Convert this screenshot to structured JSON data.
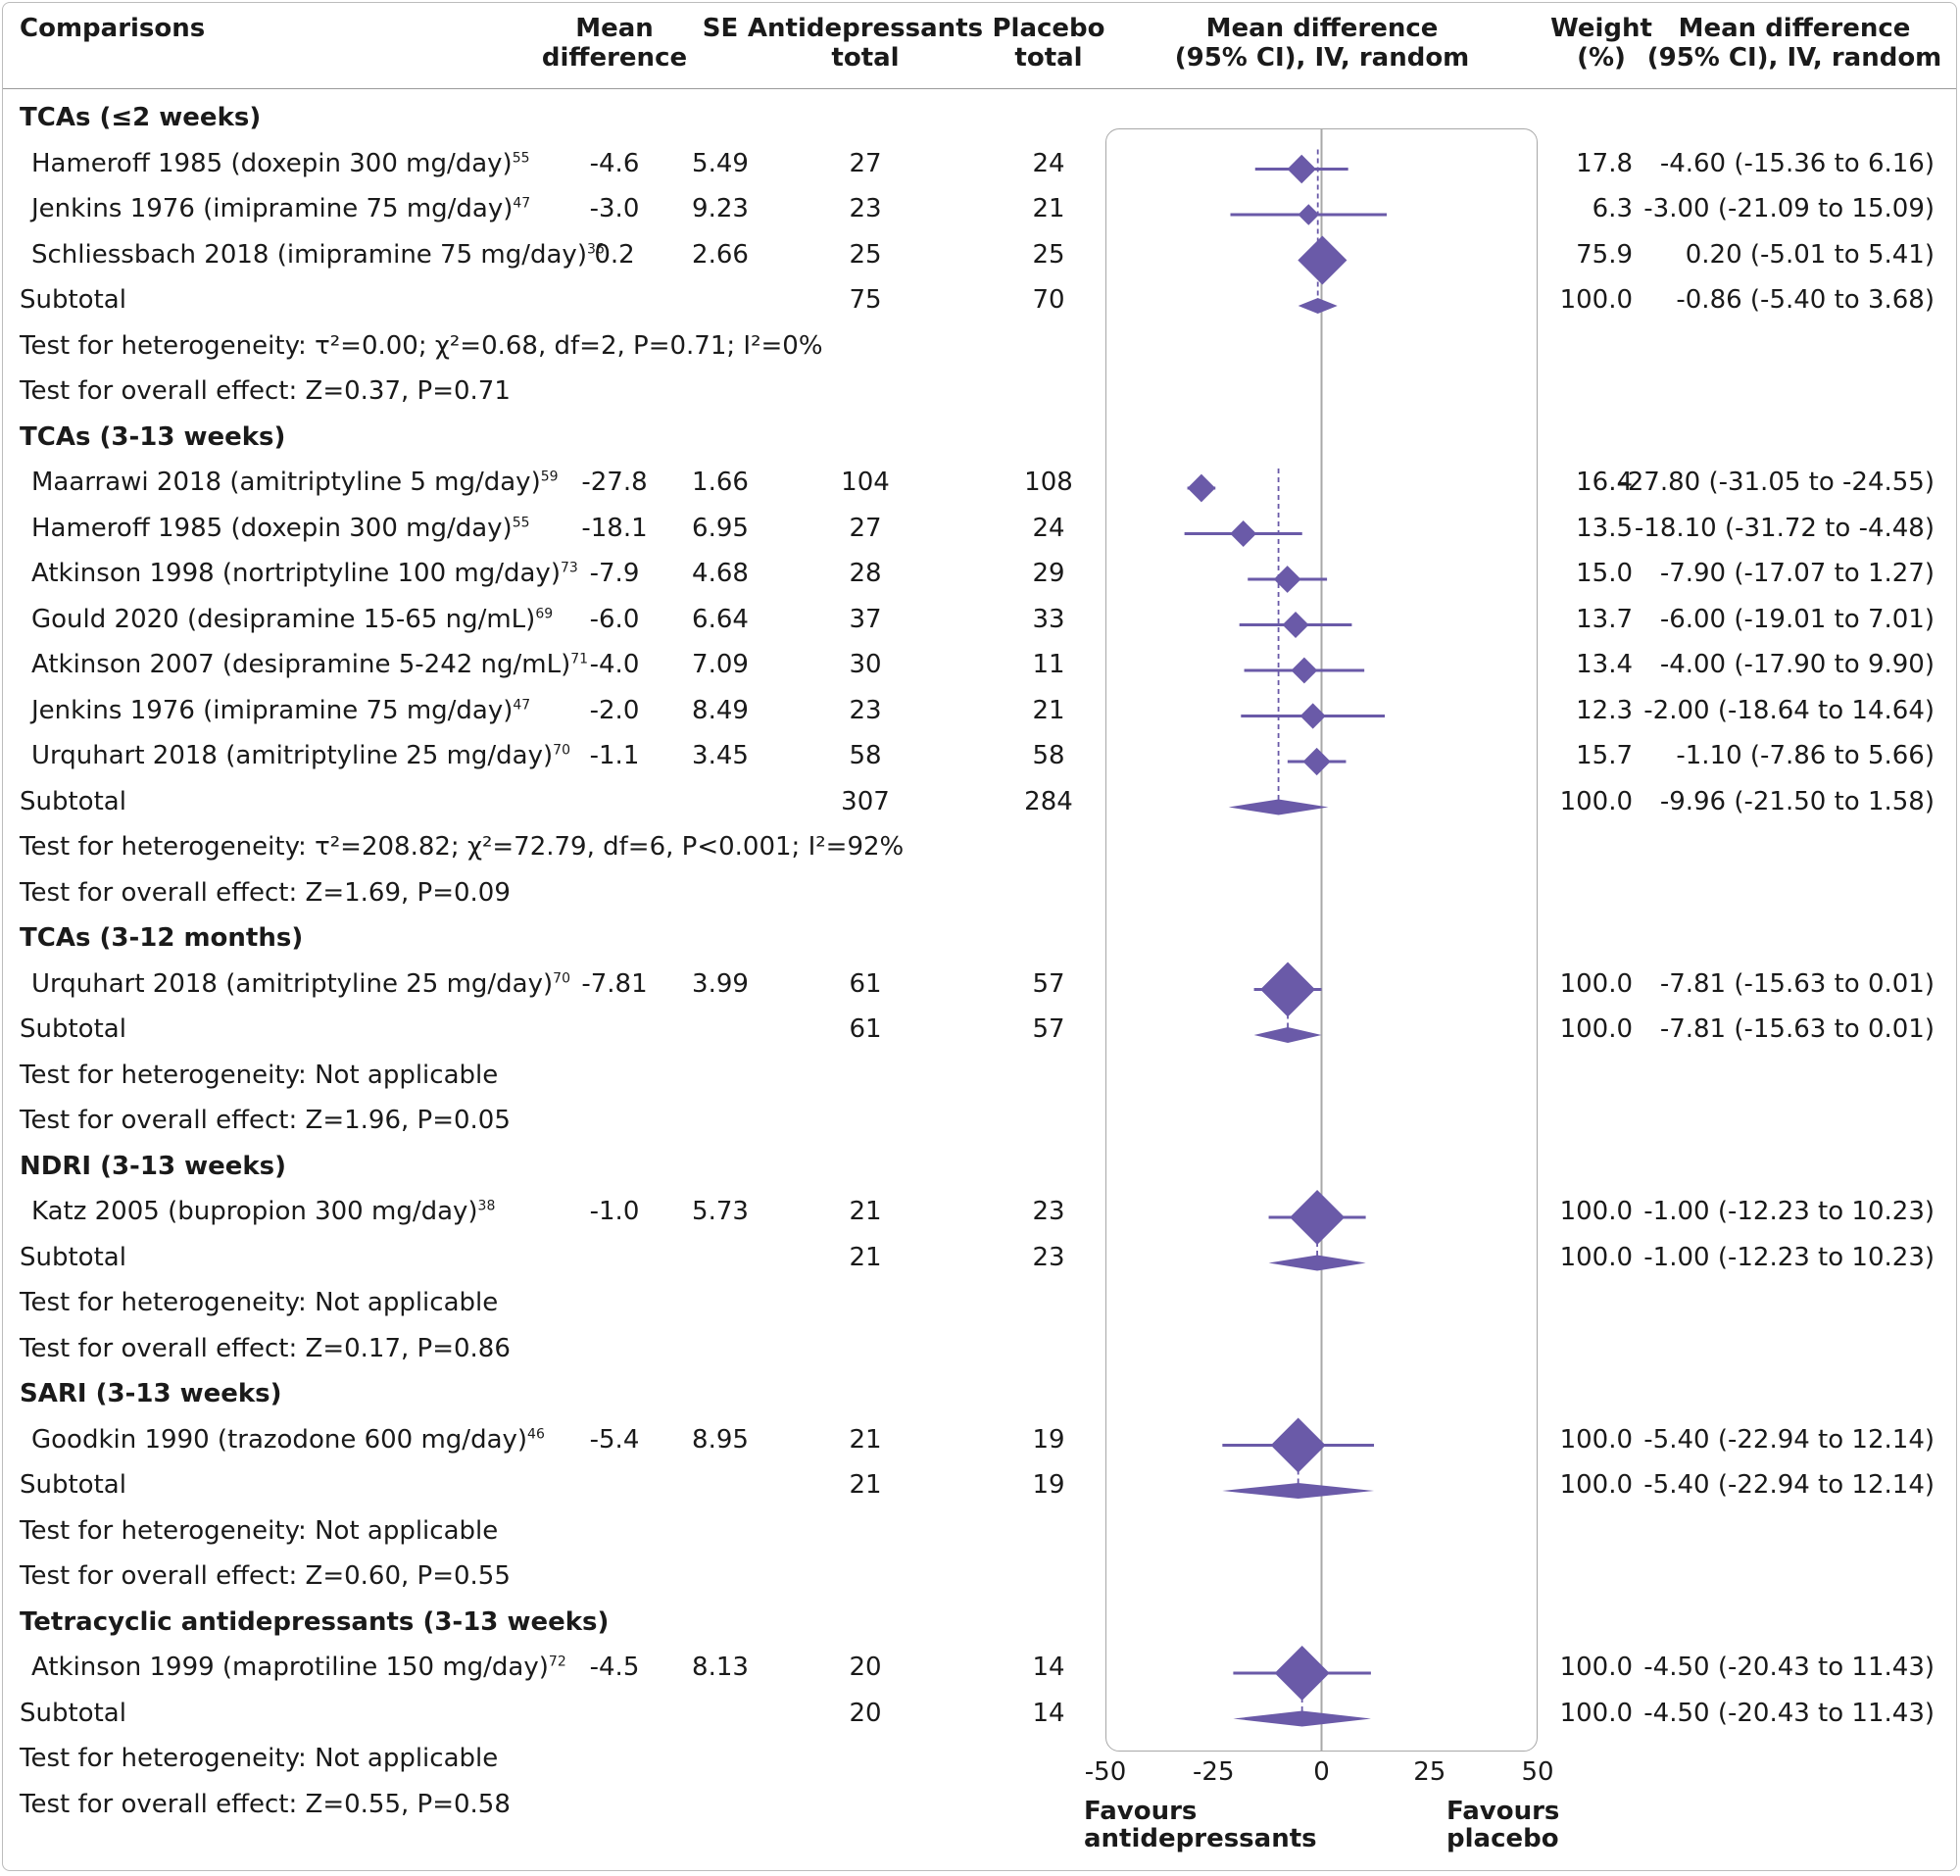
{
  "header": {
    "comparisons": "Comparisons",
    "mean_diff_1": "Mean",
    "mean_diff_2": "difference",
    "se": "SE",
    "antidep_1": "Antidepressants",
    "antidep_2": "total",
    "placebo_1": "Placebo",
    "placebo_2": "total",
    "plot_1": "Mean difference",
    "plot_2": "(95% CI), IV, random",
    "weight_1": "Weight",
    "weight_2": "(%)",
    "ci_1": "Mean difference",
    "ci_2": "(95% CI), IV, random"
  },
  "rows": [
    {
      "kind": "group",
      "label": "TCAs (≤2 weeks)"
    },
    {
      "kind": "study",
      "label": "Hameroff 1985 (doxepin 300 mg/day)",
      "ref": "55",
      "md": "-4.6",
      "se": "5.49",
      "n_ad": "27",
      "n_pl": "24",
      "weight": "17.8",
      "ci_text": "-4.60 (-15.36 to 6.16)"
    },
    {
      "kind": "study",
      "label": "Jenkins 1976 (imipramine 75 mg/day)",
      "ref": "47",
      "md": "-3.0",
      "se": "9.23",
      "n_ad": "23",
      "n_pl": "21",
      "weight": "6.3",
      "ci_text": "-3.00 (-21.09 to 15.09)"
    },
    {
      "kind": "study",
      "label": "Schliessbach 2018 (imipramine 75 mg/day)",
      "ref": "36",
      "md": "0.2",
      "se": "2.66",
      "n_ad": "25",
      "n_pl": "25",
      "weight": "75.9",
      "ci_text": "0.20 (-5.01 to 5.41)"
    },
    {
      "kind": "subtotal",
      "label": "Subtotal",
      "n_ad": "75",
      "n_pl": "70",
      "weight": "100.0",
      "ci_text": "-0.86 (-5.40 to 3.68)"
    },
    {
      "kind": "note",
      "label": "Test for heterogeneity: τ²=0.00; χ²=0.68, df=2, P=0.71; I²=0%"
    },
    {
      "kind": "note",
      "label": "Test for overall effect: Z=0.37, P=0.71"
    },
    {
      "kind": "group",
      "label": "TCAs (3-13 weeks)"
    },
    {
      "kind": "study",
      "label": "Maarrawi 2018 (amitriptyline 5 mg/day)",
      "ref": "59",
      "md": "-27.8",
      "se": "1.66",
      "n_ad": "104",
      "n_pl": "108",
      "weight": "16.4",
      "ci_text": "-27.80 (-31.05 to -24.55)"
    },
    {
      "kind": "study",
      "label": "Hameroff 1985 (doxepin 300 mg/day)",
      "ref": "55",
      "md": "-18.1",
      "se": "6.95",
      "n_ad": "27",
      "n_pl": "24",
      "weight": "13.5",
      "ci_text": "-18.10 (-31.72 to -4.48)"
    },
    {
      "kind": "study",
      "label": "Atkinson 1998 (nortriptyline 100 mg/day)",
      "ref": "73",
      "md": "-7.9",
      "se": "4.68",
      "n_ad": "28",
      "n_pl": "29",
      "weight": "15.0",
      "ci_text": "-7.90 (-17.07 to 1.27)"
    },
    {
      "kind": "study",
      "label": "Gould 2020 (desipramine 15-65 ng/mL)",
      "ref": "69",
      "md": "-6.0",
      "se": "6.64",
      "n_ad": "37",
      "n_pl": "33",
      "weight": "13.7",
      "ci_text": "-6.00 (-19.01 to 7.01)"
    },
    {
      "kind": "study",
      "label": "Atkinson 2007 (desipramine 5-242 ng/mL)",
      "ref": "71",
      "md": "-4.0",
      "se": "7.09",
      "n_ad": "30",
      "n_pl": "11",
      "weight": "13.4",
      "ci_text": "-4.00 (-17.90 to 9.90)"
    },
    {
      "kind": "study",
      "label": "Jenkins 1976 (imipramine 75 mg/day)",
      "ref": "47",
      "md": "-2.0",
      "se": "8.49",
      "n_ad": "23",
      "n_pl": "21",
      "weight": "12.3",
      "ci_text": "-2.00 (-18.64 to 14.64)"
    },
    {
      "kind": "study",
      "label": "Urquhart 2018 (amitriptyline 25 mg/day)",
      "ref": "70",
      "md": "-1.1",
      "se": "3.45",
      "n_ad": "58",
      "n_pl": "58",
      "weight": "15.7",
      "ci_text": "-1.10 (-7.86 to 5.66)"
    },
    {
      "kind": "subtotal",
      "label": "Subtotal",
      "n_ad": "307",
      "n_pl": "284",
      "weight": "100.0",
      "ci_text": "-9.96 (-21.50 to 1.58)"
    },
    {
      "kind": "note",
      "label": "Test for heterogeneity: τ²=208.82; χ²=72.79, df=6, P<0.001; I²=92%"
    },
    {
      "kind": "note",
      "label": "Test for overall effect: Z=1.69, P=0.09"
    },
    {
      "kind": "group",
      "label": "TCAs (3-12 months)"
    },
    {
      "kind": "study",
      "label": "Urquhart 2018 (amitriptyline 25 mg/day)",
      "ref": "70",
      "md": "-7.81",
      "se": "3.99",
      "n_ad": "61",
      "n_pl": "57",
      "weight": "100.0",
      "ci_text": "-7.81 (-15.63 to 0.01)"
    },
    {
      "kind": "subtotal",
      "label": "Subtotal",
      "n_ad": "61",
      "n_pl": "57",
      "weight": "100.0",
      "ci_text": "-7.81 (-15.63 to 0.01)"
    },
    {
      "kind": "note",
      "label": "Test for heterogeneity: Not applicable"
    },
    {
      "kind": "note",
      "label": "Test for overall effect: Z=1.96, P=0.05"
    },
    {
      "kind": "group",
      "label": "NDRI (3-13 weeks)"
    },
    {
      "kind": "study",
      "label": "Katz 2005 (bupropion 300 mg/day)",
      "ref": "38",
      "md": "-1.0",
      "se": "5.73",
      "n_ad": "21",
      "n_pl": "23",
      "weight": "100.0",
      "ci_text": "-1.00 (-12.23 to 10.23)"
    },
    {
      "kind": "subtotal",
      "label": "Subtotal",
      "n_ad": "21",
      "n_pl": "23",
      "weight": "100.0",
      "ci_text": "-1.00 (-12.23 to 10.23)"
    },
    {
      "kind": "note",
      "label": "Test for heterogeneity: Not applicable"
    },
    {
      "kind": "note",
      "label": "Test for overall effect: Z=0.17, P=0.86"
    },
    {
      "kind": "group",
      "label": "SARI (3-13 weeks)"
    },
    {
      "kind": "study",
      "label": "Goodkin 1990 (trazodone 600 mg/day)",
      "ref": "46",
      "md": "-5.4",
      "se": "8.95",
      "n_ad": "21",
      "n_pl": "19",
      "weight": "100.0",
      "ci_text": "-5.40 (-22.94 to 12.14)"
    },
    {
      "kind": "subtotal",
      "label": "Subtotal",
      "n_ad": "21",
      "n_pl": "19",
      "weight": "100.0",
      "ci_text": "-5.40 (-22.94 to 12.14)"
    },
    {
      "kind": "note",
      "label": "Test for heterogeneity: Not applicable"
    },
    {
      "kind": "note",
      "label": "Test for overall effect: Z=0.60, P=0.55"
    },
    {
      "kind": "group",
      "label": "Tetracyclic antidepressants (3-13 weeks)"
    },
    {
      "kind": "study",
      "label": "Atkinson 1999 (maprotiline 150 mg/day)",
      "ref": "72",
      "md": "-4.5",
      "se": "8.13",
      "n_ad": "20",
      "n_pl": "14",
      "weight": "100.0",
      "ci_text": "-4.50 (-20.43 to 11.43)"
    },
    {
      "kind": "subtotal",
      "label": "Subtotal",
      "n_ad": "20",
      "n_pl": "14",
      "weight": "100.0",
      "ci_text": "-4.50 (-20.43 to 11.43)"
    },
    {
      "kind": "note",
      "label": "Test for heterogeneity: Not applicable"
    },
    {
      "kind": "note",
      "label": "Test for overall effect: Z=0.55, P=0.58"
    }
  ],
  "axis": {
    "ticks": [
      "-50",
      "-25",
      "0",
      "25",
      "50"
    ],
    "favours_left_1": "Favours",
    "favours_left_2": "antidepressants",
    "favours_right_1": "Favours",
    "favours_right_2": "placebo"
  },
  "colors": {
    "marker": "#6a5aa8",
    "reference_line": "#a8a8a8",
    "text": "#1a1a1a"
  },
  "chart_data": {
    "type": "forest",
    "xlim": [
      -50,
      50
    ],
    "x_ticks": [
      -50,
      -25,
      0,
      25,
      50
    ],
    "reference_value": 0,
    "studies": [
      {
        "row": 1,
        "kind": "study",
        "group": "TCAs (≤2 weeks)",
        "estimate": -4.6,
        "ci": [
          -15.36,
          6.16
        ],
        "weight": 17.8
      },
      {
        "row": 2,
        "kind": "study",
        "group": "TCAs (≤2 weeks)",
        "estimate": -3.0,
        "ci": [
          -21.09,
          15.09
        ],
        "weight": 6.3
      },
      {
        "row": 3,
        "kind": "study",
        "group": "TCAs (≤2 weeks)",
        "estimate": 0.2,
        "ci": [
          -5.01,
          5.41
        ],
        "weight": 75.9
      },
      {
        "row": 4,
        "kind": "subtotal",
        "group": "TCAs (≤2 weeks)",
        "estimate": -0.86,
        "ci": [
          -5.4,
          3.68
        ],
        "weight": 100.0
      },
      {
        "row": 8,
        "kind": "study",
        "group": "TCAs (3-13 weeks)",
        "estimate": -27.8,
        "ci": [
          -31.05,
          -24.55
        ],
        "weight": 16.4
      },
      {
        "row": 9,
        "kind": "study",
        "group": "TCAs (3-13 weeks)",
        "estimate": -18.1,
        "ci": [
          -31.72,
          -4.48
        ],
        "weight": 13.5
      },
      {
        "row": 10,
        "kind": "study",
        "group": "TCAs (3-13 weeks)",
        "estimate": -7.9,
        "ci": [
          -17.07,
          1.27
        ],
        "weight": 15.0
      },
      {
        "row": 11,
        "kind": "study",
        "group": "TCAs (3-13 weeks)",
        "estimate": -6.0,
        "ci": [
          -19.01,
          7.01
        ],
        "weight": 13.7
      },
      {
        "row": 12,
        "kind": "study",
        "group": "TCAs (3-13 weeks)",
        "estimate": -4.0,
        "ci": [
          -17.9,
          9.9
        ],
        "weight": 13.4
      },
      {
        "row": 13,
        "kind": "study",
        "group": "TCAs (3-13 weeks)",
        "estimate": -2.0,
        "ci": [
          -18.64,
          14.64
        ],
        "weight": 12.3
      },
      {
        "row": 14,
        "kind": "study",
        "group": "TCAs (3-13 weeks)",
        "estimate": -1.1,
        "ci": [
          -7.86,
          5.66
        ],
        "weight": 15.7
      },
      {
        "row": 15,
        "kind": "subtotal",
        "group": "TCAs (3-13 weeks)",
        "estimate": -9.96,
        "ci": [
          -21.5,
          1.58
        ],
        "weight": 100.0
      },
      {
        "row": 19,
        "kind": "study",
        "group": "TCAs (3-12 months)",
        "estimate": -7.81,
        "ci": [
          -15.63,
          0.01
        ],
        "weight": 100.0
      },
      {
        "row": 20,
        "kind": "subtotal",
        "group": "TCAs (3-12 months)",
        "estimate": -7.81,
        "ci": [
          -15.63,
          0.01
        ],
        "weight": 100.0
      },
      {
        "row": 24,
        "kind": "study",
        "group": "NDRI (3-13 weeks)",
        "estimate": -1.0,
        "ci": [
          -12.23,
          10.23
        ],
        "weight": 100.0
      },
      {
        "row": 25,
        "kind": "subtotal",
        "group": "NDRI (3-13 weeks)",
        "estimate": -1.0,
        "ci": [
          -12.23,
          10.23
        ],
        "weight": 100.0
      },
      {
        "row": 29,
        "kind": "study",
        "group": "SARI (3-13 weeks)",
        "estimate": -5.4,
        "ci": [
          -22.94,
          12.14
        ],
        "weight": 100.0
      },
      {
        "row": 30,
        "kind": "subtotal",
        "group": "SARI (3-13 weeks)",
        "estimate": -5.4,
        "ci": [
          -22.94,
          12.14
        ],
        "weight": 100.0
      },
      {
        "row": 34,
        "kind": "study",
        "group": "Tetracyclic antidepressants (3-13 weeks)",
        "estimate": -4.5,
        "ci": [
          -20.43,
          11.43
        ],
        "weight": 100.0
      },
      {
        "row": 35,
        "kind": "subtotal",
        "group": "Tetracyclic antidepressants (3-13 weeks)",
        "estimate": -4.5,
        "ci": [
          -20.43,
          11.43
        ],
        "weight": 100.0
      }
    ],
    "dashed_pooled_lines": [
      {
        "estimate": -0.86,
        "from_row": 1,
        "to_row": 4
      },
      {
        "estimate": -9.96,
        "from_row": 8,
        "to_row": 15
      },
      {
        "estimate": -7.81,
        "from_row": 19,
        "to_row": 20
      },
      {
        "estimate": -1.0,
        "from_row": 24,
        "to_row": 25
      },
      {
        "estimate": -5.4,
        "from_row": 29,
        "to_row": 30
      },
      {
        "estimate": -4.5,
        "from_row": 34,
        "to_row": 35
      }
    ]
  }
}
